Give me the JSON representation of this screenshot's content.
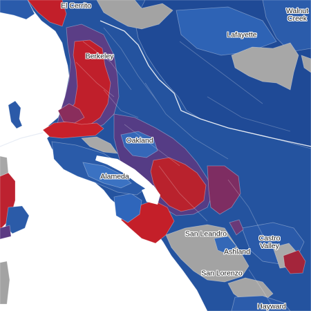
{
  "map": {
    "labels": {
      "el_cerrito": "El Cerrito",
      "walnut_creek_line1": "Walnut",
      "walnut_creek_line2": "Creek",
      "lafayette": "Lafayette",
      "berkeley": "Berkeley",
      "oakland": "Oakland",
      "alameda": "Alameda",
      "san_leandro": "San Leandro",
      "castro_valley_line1": "Castro",
      "castro_valley_line2": "Valley",
      "ashland": "Ashland",
      "san_lorenzo": "San Lorenzo",
      "hayward": "Hayward"
    },
    "colors": {
      "water": "#ffffff",
      "strong_blue": "#1f4fa0",
      "mid_blue": "#2c5faf",
      "light_blue": "#3e74c4",
      "purple": "#5a3f86",
      "dark_purple": "#4b2f6e",
      "magenta": "#8b2e5c",
      "strong_red": "#c8202a",
      "red": "#b4232e",
      "gray": "#9e9e9e",
      "light_gray": "#b0b0b0"
    }
  }
}
